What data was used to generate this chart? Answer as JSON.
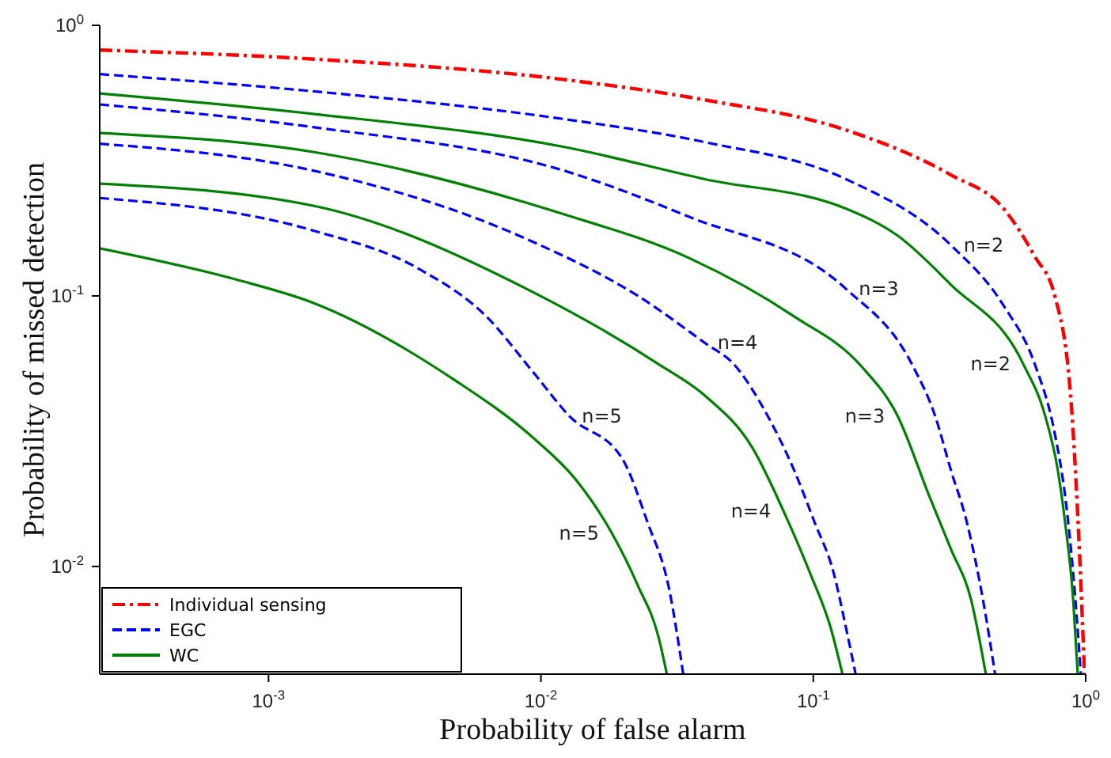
{
  "chart_data": {
    "type": "line",
    "xlabel": "Probability of false alarm",
    "ylabel": "Probability of missed detection",
    "log": "xy",
    "grid": false,
    "legend": "bottom left",
    "marker": "none",
    "xlim": [
      0.00024,
      1
    ],
    "ylim": [
      0.004,
      1
    ],
    "xticks": [
      {
        "value": 0.001,
        "label": "10$^{-3}$"
      },
      {
        "value": 0.01,
        "label": "10$^{-2}$"
      },
      {
        "value": 0.1,
        "label": "10$^{-1}$"
      },
      {
        "value": 1,
        "label": "10$^{0}$"
      }
    ],
    "yticks": [
      {
        "value": 0.01,
        "label": "10$^{-2}$"
      },
      {
        "value": 0.1,
        "label": "10$^{-1}$"
      },
      {
        "value": 1,
        "label": "10$^{0}$"
      }
    ],
    "series": [
      {
        "name": "Individual sensing",
        "color": "#ff0000",
        "line_style": "dashdot",
        "x": [
          0.00024,
          0.00147,
          0.0122,
          0.04,
          0.132,
          0.32,
          0.5,
          0.65,
          0.77,
          0.88,
          0.95,
          0.99
        ],
        "values": [
          0.81,
          0.75,
          0.63,
          0.53,
          0.41,
          0.28,
          0.21,
          0.14,
          0.1,
          0.043,
          0.011,
          0.004
        ]
      },
      {
        "name": "EGC",
        "color": "#0000ff",
        "line_style": "dashed",
        "x": [
          0.00024,
          0.00147,
          0.0122,
          0.04,
          0.132,
          0.32,
          0.5,
          0.65,
          0.77,
          0.84,
          0.9,
          0.96
        ],
        "values": [
          0.66,
          0.57,
          0.45,
          0.37,
          0.27,
          0.154,
          0.092,
          0.056,
          0.031,
          0.0183,
          0.0094,
          0.004
        ]
      },
      {
        "name": "WC",
        "color": "#008000",
        "line_style": "solid",
        "x": [
          0.00024,
          0.00147,
          0.0122,
          0.04,
          0.132,
          0.204,
          0.32,
          0.59,
          0.71,
          0.79,
          0.84,
          0.9,
          0.935
        ],
        "values": [
          0.56,
          0.47,
          0.355,
          0.27,
          0.21,
          0.167,
          0.11,
          0.056,
          0.036,
          0.0227,
          0.0146,
          0.0075,
          0.004
        ]
      },
      {
        "color": "#0000ff",
        "line_style": "dashed",
        "x": [
          0.00024,
          0.00147,
          0.0122,
          0.035,
          0.132,
          0.23,
          0.28,
          0.32,
          0.366,
          0.42,
          0.465
        ],
        "values": [
          0.51,
          0.42,
          0.29,
          0.196,
          0.106,
          0.056,
          0.036,
          0.0227,
          0.0146,
          0.0075,
          0.004
        ]
      },
      {
        "color": "#008000",
        "line_style": "solid",
        "x": [
          0.00024,
          0.00147,
          0.0122,
          0.035,
          0.085,
          0.15,
          0.204,
          0.266,
          0.32,
          0.38,
          0.43
        ],
        "values": [
          0.4,
          0.34,
          0.2,
          0.138,
          0.084,
          0.055,
          0.036,
          0.0183,
          0.0116,
          0.0075,
          0.004
        ]
      },
      {
        "color": "#0000ff",
        "line_style": "dashed",
        "x": [
          0.00024,
          0.00147,
          0.0094,
          0.0227,
          0.04,
          0.051,
          0.068,
          0.085,
          0.101,
          0.119,
          0.132,
          0.143
        ],
        "values": [
          0.365,
          0.29,
          0.158,
          0.1,
          0.067,
          0.056,
          0.036,
          0.0227,
          0.0146,
          0.0094,
          0.0059,
          0.004
        ]
      },
      {
        "color": "#008000",
        "line_style": "solid",
        "x": [
          0.00024,
          0.00147,
          0.0094,
          0.027,
          0.04,
          0.0597,
          0.0778,
          0.0975,
          0.116,
          0.128
        ],
        "values": [
          0.26,
          0.215,
          0.103,
          0.056,
          0.0428,
          0.0275,
          0.016,
          0.0094,
          0.0059,
          0.004
        ]
      },
      {
        "color": "#0000ff",
        "line_style": "dashed",
        "x": [
          0.00024,
          0.00147,
          0.00356,
          0.0063,
          0.0094,
          0.0127,
          0.0199,
          0.0246,
          0.0296,
          0.0333
        ],
        "values": [
          0.23,
          0.174,
          0.126,
          0.084,
          0.052,
          0.036,
          0.025,
          0.0146,
          0.0082,
          0.004
        ]
      },
      {
        "color": "#008000",
        "line_style": "solid",
        "x": [
          0.00024,
          0.00076,
          0.00147,
          0.0048,
          0.0094,
          0.0134,
          0.0182,
          0.0227,
          0.027,
          0.029
        ],
        "values": [
          0.15,
          0.115,
          0.094,
          0.049,
          0.0298,
          0.021,
          0.0133,
          0.0085,
          0.0055,
          0.004
        ]
      }
    ],
    "annotations": [
      {
        "text": "n=2",
        "x": 0.32,
        "y": 0.154
      },
      {
        "text": "n=3",
        "x": 0.132,
        "y": 0.106
      },
      {
        "text": "n=4",
        "x": 0.04,
        "y": 0.067
      },
      {
        "text": "n=5",
        "x": 0.0127,
        "y": 0.036
      },
      {
        "text": "n=2",
        "x": 0.59,
        "y": 0.056
      },
      {
        "text": "n=3",
        "x": 0.204,
        "y": 0.036
      },
      {
        "text": "n=4",
        "x": 0.0778,
        "y": 0.016
      },
      {
        "text": "n=5",
        "x": 0.0182,
        "y": 0.0133
      }
    ]
  }
}
